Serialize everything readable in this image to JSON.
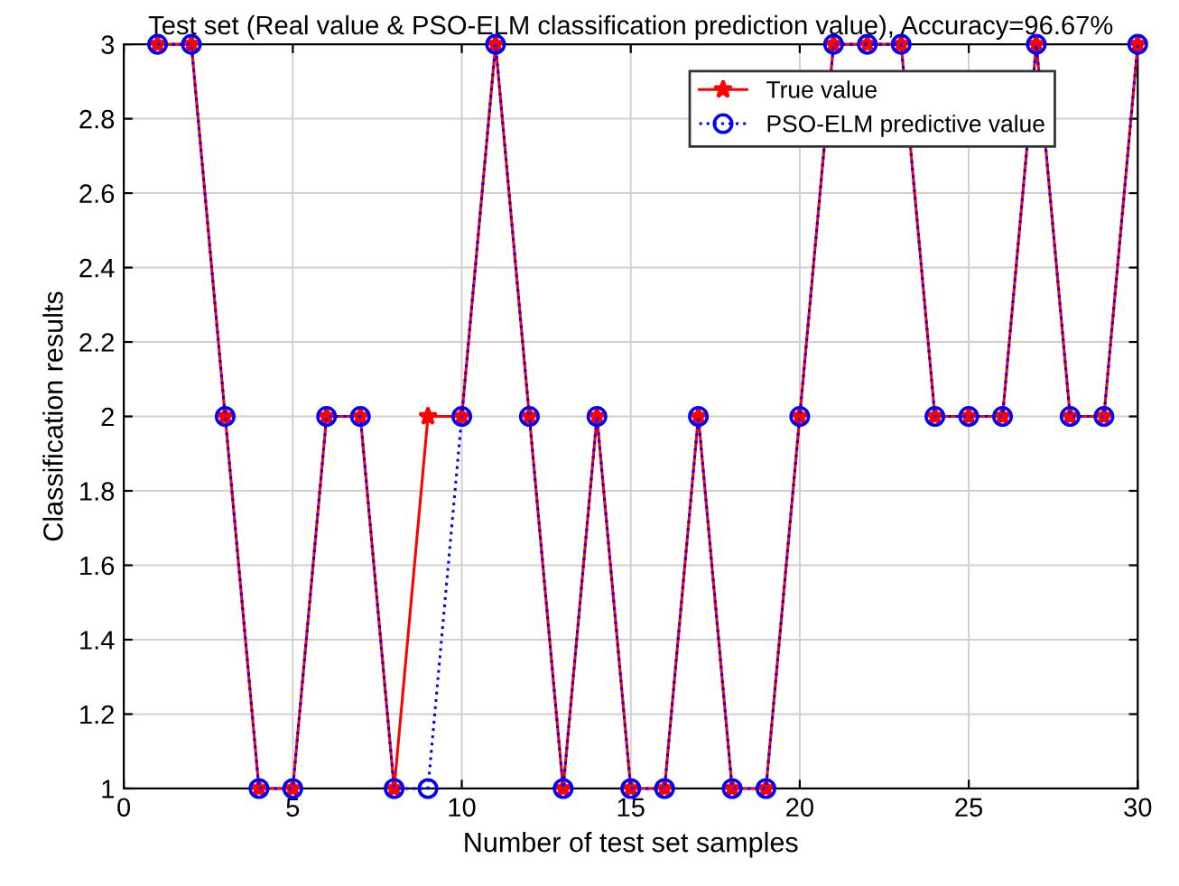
{
  "chart_data": {
    "type": "line",
    "title": "Test set (Real value & PSO-ELM classification prediction value), Accuracy=96.67%",
    "xlabel": "Number of test set samples",
    "ylabel": "Classification results",
    "x": [
      1,
      2,
      3,
      4,
      5,
      6,
      7,
      8,
      9,
      10,
      11,
      12,
      13,
      14,
      15,
      16,
      17,
      18,
      19,
      20,
      21,
      22,
      23,
      24,
      25,
      26,
      27,
      28,
      29,
      30
    ],
    "series": [
      {
        "name": "True value",
        "color": "#ff0000",
        "marker": "star",
        "line_style": "solid",
        "values": [
          3,
          3,
          2,
          1,
          1,
          2,
          2,
          1,
          2,
          2,
          3,
          2,
          1,
          2,
          1,
          1,
          2,
          1,
          1,
          2,
          3,
          3,
          3,
          2,
          2,
          2,
          3,
          2,
          2,
          3
        ]
      },
      {
        "name": "PSO-ELM predictive value",
        "color": "#0000ff",
        "marker": "circle",
        "line_style": "dotted",
        "values": [
          3,
          3,
          2,
          1,
          1,
          2,
          2,
          1,
          1,
          2,
          3,
          2,
          1,
          2,
          1,
          1,
          2,
          1,
          1,
          2,
          3,
          3,
          3,
          2,
          2,
          2,
          3,
          2,
          2,
          3
        ]
      }
    ],
    "xlim": [
      0,
      30
    ],
    "xticks": [
      0,
      5,
      10,
      15,
      20,
      25,
      30
    ],
    "ylim": [
      1,
      3
    ],
    "yticks": [
      1,
      1.2,
      1.4,
      1.6,
      1.8,
      2,
      2.2,
      2.4,
      2.6,
      2.8,
      3
    ],
    "grid": true,
    "legend": "top right"
  }
}
